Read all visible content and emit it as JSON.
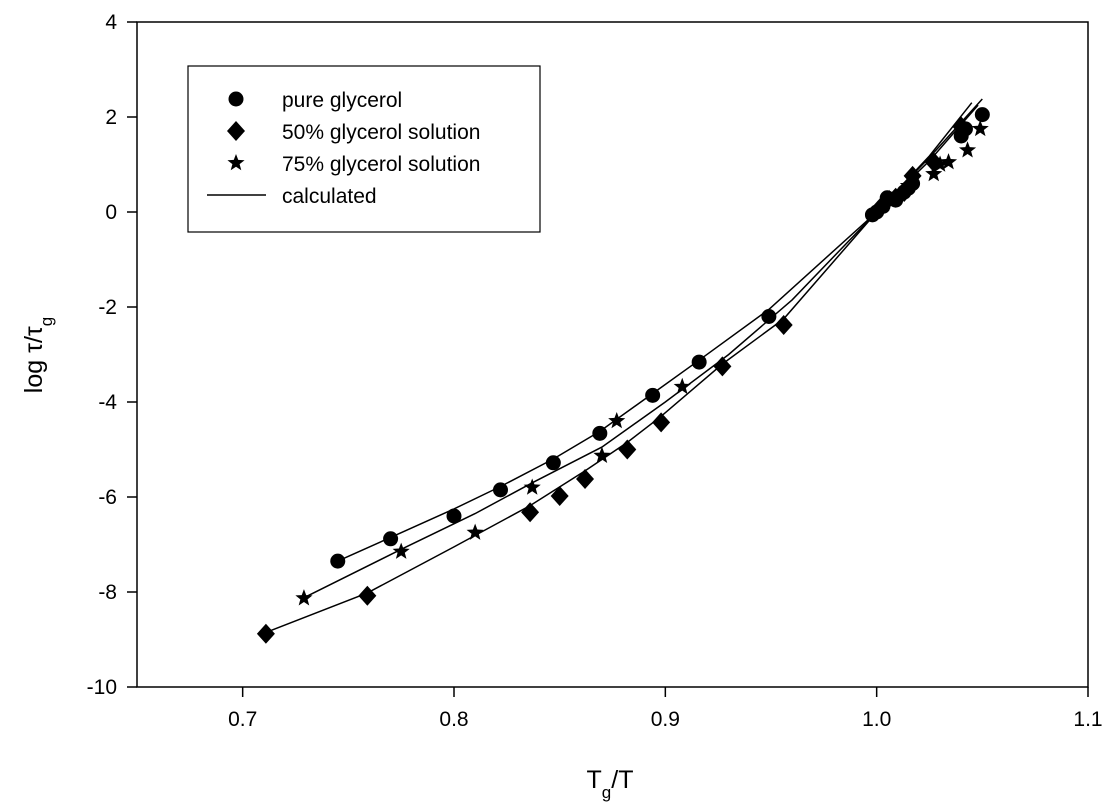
{
  "chart_data": {
    "type": "scatter",
    "title": "",
    "xlabel": {
      "main": "T",
      "sub": "g",
      "tail": "/T"
    },
    "ylabel": {
      "main": "log τ/τ",
      "sub": "g"
    },
    "xlim": [
      0.65,
      1.1
    ],
    "ylim": [
      -10,
      4
    ],
    "xticks": [
      0.7,
      0.8,
      0.9,
      1.0,
      1.1
    ],
    "xtick_labels": [
      "0.7",
      "0.8",
      "0.9",
      "1.0",
      "1.1"
    ],
    "yticks": [
      -10,
      -8,
      -6,
      -4,
      -2,
      0,
      2,
      4
    ],
    "ytick_labels": [
      "-10",
      "-8",
      "-6",
      "-4",
      "-2",
      "0",
      "2",
      "4"
    ],
    "grid": false,
    "legend_position": "top-left",
    "legend": [
      {
        "label": "pure glycerol",
        "marker": "circle"
      },
      {
        "label": "50% glycerol solution",
        "marker": "diamond"
      },
      {
        "label": "75% glycerol solution",
        "marker": "star"
      },
      {
        "label": "calculated",
        "marker": "line"
      }
    ],
    "series": [
      {
        "name": "pure glycerol",
        "marker": "circle",
        "x": [
          0.745,
          0.77,
          0.8,
          0.822,
          0.847,
          0.869,
          0.894,
          0.916,
          0.949,
          0.998,
          1.0,
          1.003,
          1.005,
          1.009,
          1.013,
          1.015,
          1.017,
          1.04,
          1.042,
          1.05
        ],
        "y": [
          -7.35,
          -6.88,
          -6.4,
          -5.85,
          -5.28,
          -4.66,
          -3.86,
          -3.16,
          -2.2,
          -0.06,
          0.0,
          0.12,
          0.3,
          0.25,
          0.42,
          0.5,
          0.6,
          1.6,
          1.75,
          2.05
        ]
      },
      {
        "name": "50% glycerol solution",
        "marker": "diamond",
        "x": [
          0.711,
          0.759,
          0.836,
          0.85,
          0.862,
          0.882,
          0.898,
          0.927,
          0.956,
          1.003,
          1.009,
          1.013,
          1.017,
          1.027,
          1.04
        ],
        "y": [
          -8.88,
          -8.08,
          -6.32,
          -5.98,
          -5.62,
          -5.0,
          -4.43,
          -3.25,
          -2.38,
          0.15,
          0.3,
          0.42,
          0.76,
          1.05,
          1.8
        ]
      },
      {
        "name": "75% glycerol solution",
        "marker": "star",
        "x": [
          0.729,
          0.775,
          0.81,
          0.837,
          0.87,
          0.877,
          0.908,
          1.006,
          1.015,
          1.027,
          1.03,
          1.034,
          1.043,
          1.049
        ],
        "y": [
          -8.13,
          -7.15,
          -6.75,
          -5.8,
          -5.13,
          -4.4,
          -3.68,
          0.28,
          0.55,
          0.8,
          1.0,
          1.05,
          1.3,
          1.75
        ]
      }
    ],
    "calculated_lines": [
      {
        "x": [
          0.745,
          0.77,
          0.8,
          0.822,
          0.847,
          0.869,
          0.894,
          0.916,
          0.949,
          1.0,
          1.025,
          1.048
        ],
        "y": [
          -7.35,
          -6.85,
          -6.25,
          -5.78,
          -5.2,
          -4.62,
          -3.82,
          -3.12,
          -2.05,
          0.0,
          1.08,
          2.25
        ]
      },
      {
        "x": [
          0.711,
          0.759,
          0.8,
          0.836,
          0.862,
          0.882,
          0.898,
          0.927,
          0.956,
          1.0,
          1.025,
          1.045
        ],
        "y": [
          -8.85,
          -8.02,
          -7.05,
          -6.18,
          -5.45,
          -4.85,
          -4.3,
          -3.2,
          -2.25,
          0.0,
          1.18,
          2.3
        ]
      },
      {
        "x": [
          0.729,
          0.775,
          0.81,
          0.837,
          0.87,
          0.9,
          0.93,
          0.96,
          1.0,
          1.025,
          1.05
        ],
        "y": [
          -8.12,
          -7.1,
          -6.35,
          -5.7,
          -4.95,
          -4.0,
          -3.0,
          -1.85,
          0.0,
          1.15,
          2.38
        ]
      }
    ]
  }
}
